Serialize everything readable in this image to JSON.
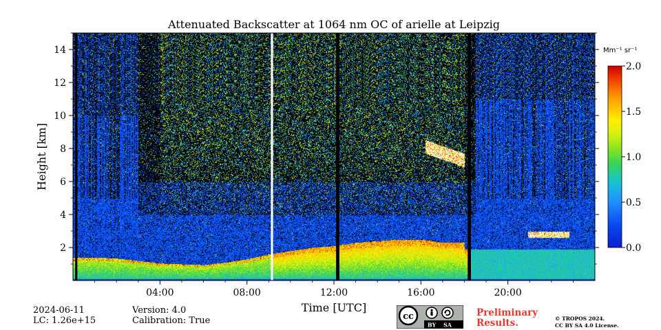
{
  "chart_data": {
    "type": "heatmap",
    "title": "Attenuated Backscatter at 1064 nm OC of arielle at Leipzig",
    "xlabel": "Time [UTC]",
    "ylabel": "Height [km]",
    "xlim": [
      0,
      24
    ],
    "ylim": [
      0,
      15
    ],
    "x_ticks": [
      4,
      8,
      12,
      16,
      20
    ],
    "x_tick_labels": [
      "04:00",
      "08:00",
      "12:00",
      "16:00",
      "20:00"
    ],
    "y_ticks": [
      2,
      4,
      6,
      8,
      10,
      12,
      14
    ],
    "y_tick_labels": [
      "2",
      "4",
      "6",
      "8",
      "10",
      "12",
      "14"
    ],
    "colorbar": {
      "label": "Mm⁻¹ sr⁻¹",
      "range": [
        0.0,
        2.0
      ],
      "ticks": [
        0.0,
        0.5,
        1.0,
        1.5,
        2.0
      ],
      "tick_labels": [
        "0.0",
        "0.5",
        "1.0",
        "1.5",
        "2.0"
      ]
    },
    "boundary_layer_top_km": [
      [
        0.3,
        1.4
      ],
      [
        1,
        1.4
      ],
      [
        2,
        1.35
      ],
      [
        3,
        1.2
      ],
      [
        4,
        1.05
      ],
      [
        5,
        1.0
      ],
      [
        6,
        0.95
      ],
      [
        7,
        1.1
      ],
      [
        8,
        1.3
      ],
      [
        9,
        1.6
      ],
      [
        10,
        1.8
      ],
      [
        11,
        2.0
      ],
      [
        12,
        2.1
      ],
      [
        13,
        2.3
      ],
      [
        14,
        2.4
      ],
      [
        15,
        2.5
      ],
      [
        16,
        2.5
      ],
      [
        17,
        2.3
      ],
      [
        18,
        2.3
      ]
    ],
    "cloud_layers": [
      {
        "name": "mid-level cloud",
        "start_h": 16.2,
        "end_h": 18.0,
        "base_km": 6.8,
        "top_km": 8.3
      },
      {
        "name": "low cloud",
        "start_h": 20.9,
        "end_h": 22.8,
        "base_km": 2.6,
        "top_km": 3.3
      }
    ],
    "data_gaps": [
      {
        "start_h": 0.1,
        "end_h": 0.2,
        "color": "#000000"
      },
      {
        "start_h": 9.1,
        "end_h": 9.2,
        "color": "#ffffff"
      },
      {
        "start_h": 12.1,
        "end_h": 12.25,
        "color": "#000000"
      },
      {
        "start_h": 18.15,
        "end_h": 18.3,
        "color": "#000000"
      }
    ]
  },
  "footer": {
    "date": "2024-06-11",
    "lc": "LC: 1.26e+15",
    "version": "Version: 4.0",
    "calibration": "Calibration: True",
    "preliminary_line1": "Preliminary",
    "preliminary_line2": "Results.",
    "copyright_line1": "© TROPOS 2024.",
    "copyright_line2": "CC BY SA 4.0 License.",
    "license_badge": {
      "cc": "cc",
      "by": "BY",
      "sa": "SA"
    }
  },
  "colors": {
    "background_low": "#0a34d8",
    "colormap": [
      "#0000c8",
      "#0a46f0",
      "#1e90ff",
      "#19c3d2",
      "#37d25a",
      "#b4ee1e",
      "#fff000",
      "#ffa000",
      "#f03c00",
      "#c80000"
    ],
    "preliminary_text": "#e8372f"
  }
}
